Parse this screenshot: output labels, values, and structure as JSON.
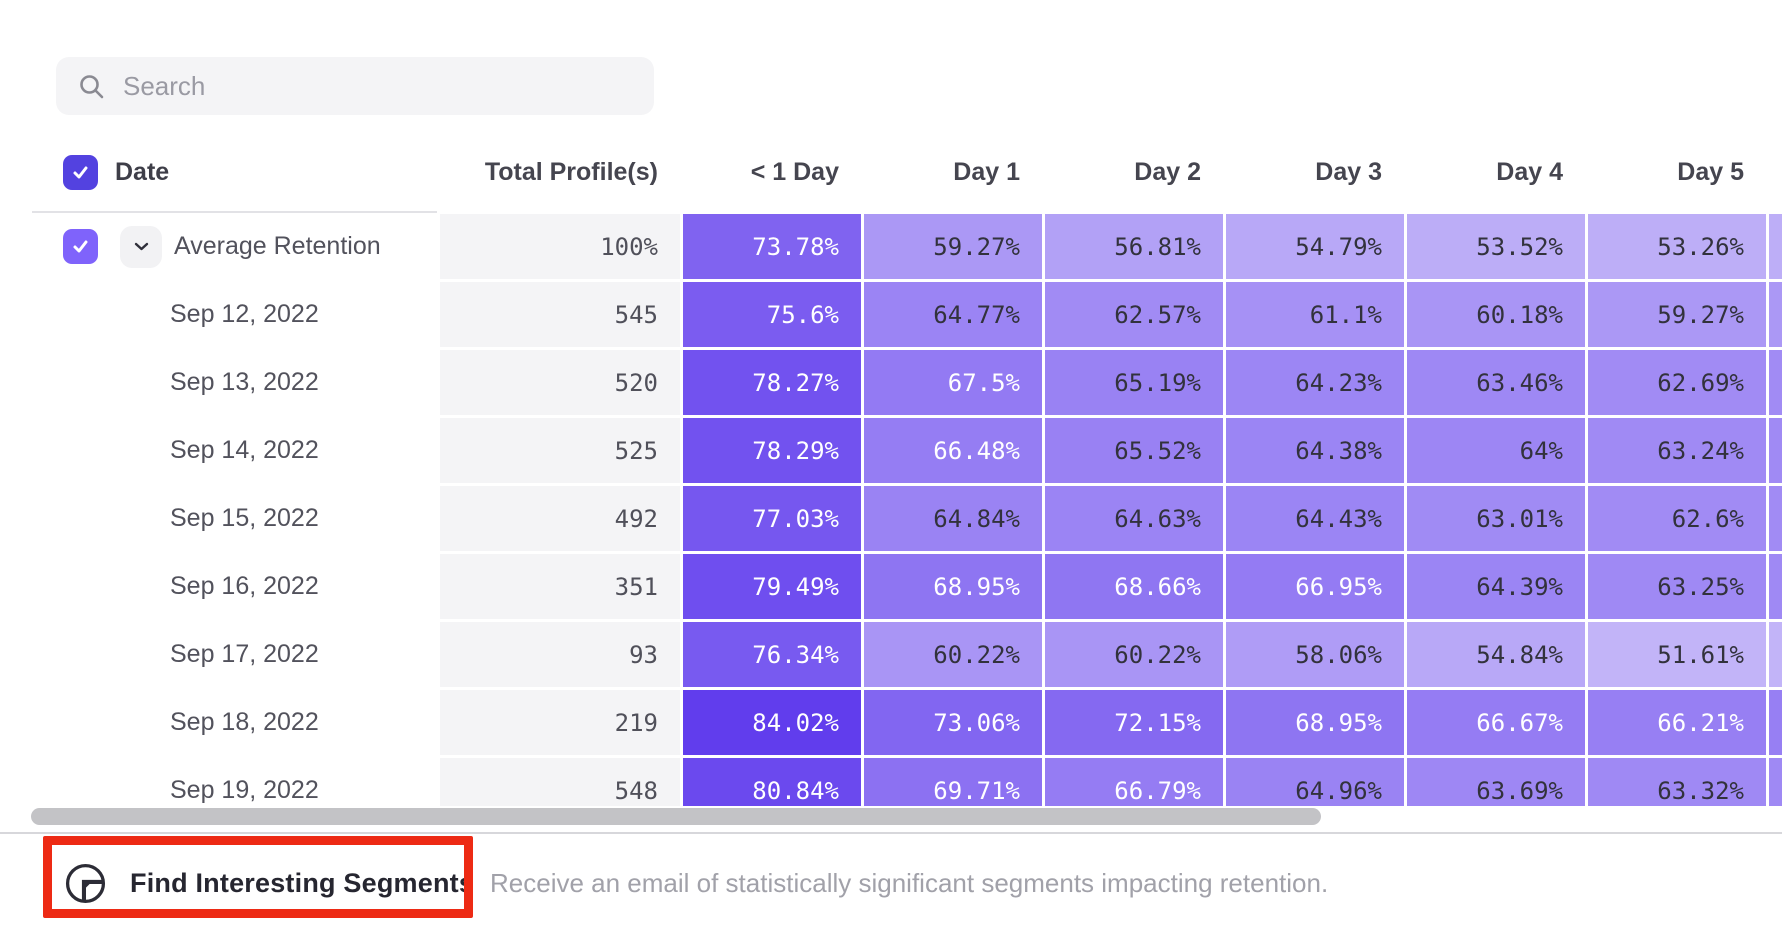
{
  "search": {
    "placeholder": "Search"
  },
  "table": {
    "header": {
      "date": "Date",
      "total": "Total Profile(s)",
      "days": [
        "< 1 Day",
        "Day 1",
        "Day 2",
        "Day 3",
        "Day 4",
        "Day 5"
      ]
    },
    "rows": [
      {
        "label": "Average Retention",
        "expandable": true,
        "checked": true,
        "total": "100%",
        "values": [
          73.78,
          59.27,
          56.81,
          54.79,
          53.52,
          53.26
        ]
      },
      {
        "label": "Sep 12, 2022",
        "total": "545",
        "values": [
          75.6,
          64.77,
          62.57,
          61.1,
          60.18,
          59.27
        ]
      },
      {
        "label": "Sep 13, 2022",
        "total": "520",
        "values": [
          78.27,
          67.5,
          65.19,
          64.23,
          63.46,
          62.69
        ]
      },
      {
        "label": "Sep 14, 2022",
        "total": "525",
        "values": [
          78.29,
          66.48,
          65.52,
          64.38,
          64,
          63.24
        ]
      },
      {
        "label": "Sep 15, 2022",
        "total": "492",
        "values": [
          77.03,
          64.84,
          64.63,
          64.43,
          63.01,
          62.6
        ]
      },
      {
        "label": "Sep 16, 2022",
        "total": "351",
        "values": [
          79.49,
          68.95,
          68.66,
          66.95,
          64.39,
          63.25
        ]
      },
      {
        "label": "Sep 17, 2022",
        "total": "93",
        "values": [
          76.34,
          60.22,
          60.22,
          58.06,
          54.84,
          51.61
        ]
      },
      {
        "label": "Sep 18, 2022",
        "total": "219",
        "values": [
          84.02,
          73.06,
          72.15,
          68.95,
          66.67,
          66.21
        ]
      },
      {
        "label": "Sep 19, 2022",
        "total": "548",
        "values": [
          80.84,
          69.71,
          66.79,
          64.96,
          63.69,
          63.32
        ]
      }
    ],
    "heatmap": {
      "base_rgb": [
        80,
        40,
        235
      ],
      "min_value": 51.61,
      "max_value": 84.02,
      "min_alpha": 0.35,
      "max_alpha": 0.9,
      "white_text_min": 66
    }
  },
  "footer": {
    "button_label": "Find Interesting Segments",
    "description": "Receive an email of statistically significant segments impacting retention.",
    "annotation_color": "#ed2a14"
  },
  "colors": {
    "header_checkbox": "#5342e0",
    "row_checkbox": "#7f63fb",
    "total_column_bg": "#f4f4f6"
  }
}
